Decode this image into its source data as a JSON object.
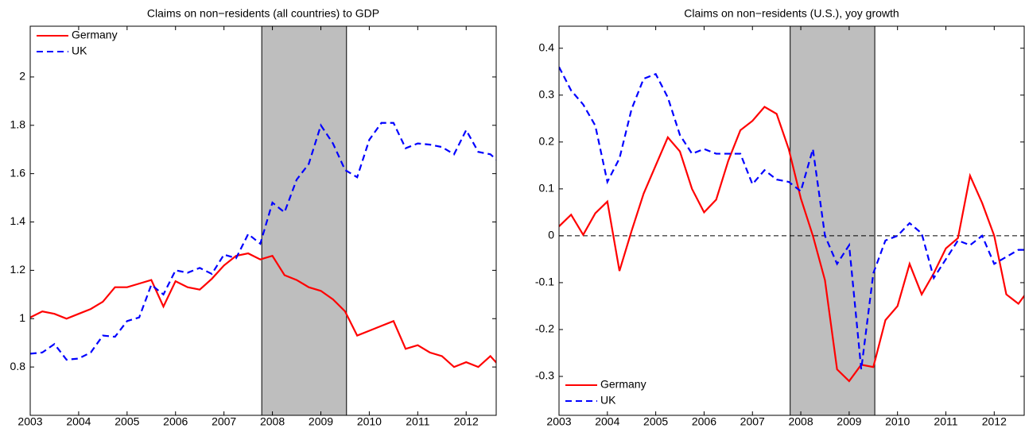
{
  "chart_data": [
    {
      "type": "line",
      "title": "Claims on non−residents (all countries) to GDP",
      "x": [
        2003,
        2003.25,
        2003.5,
        2003.75,
        2004,
        2004.25,
        2004.5,
        2004.75,
        2005,
        2005.25,
        2005.5,
        2005.75,
        2006,
        2006.25,
        2006.5,
        2006.75,
        2007,
        2007.25,
        2007.5,
        2007.75,
        2008,
        2008.25,
        2008.5,
        2008.75,
        2009,
        2009.25,
        2009.5,
        2009.75,
        2010,
        2010.25,
        2010.5,
        2010.75,
        2011,
        2011.25,
        2011.5,
        2011.75,
        2012,
        2012.25,
        2012.5,
        2012.75
      ],
      "series": [
        {
          "name": "Germany",
          "color": "#ff0000",
          "dash": false,
          "values": [
            1.005,
            1.03,
            1.02,
            1.0,
            1.02,
            1.04,
            1.07,
            1.13,
            1.13,
            1.145,
            1.16,
            1.05,
            1.155,
            1.13,
            1.12,
            1.165,
            1.22,
            1.26,
            1.27,
            1.245,
            1.26,
            1.18,
            1.16,
            1.13,
            1.115,
            1.08,
            1.03,
            0.93,
            0.95,
            0.97,
            0.99,
            0.875,
            0.89,
            0.86,
            0.845,
            0.8,
            0.82,
            0.8,
            0.845,
            0.79
          ]
        },
        {
          "name": "UK",
          "color": "#0000ff",
          "dash": true,
          "values": [
            0.855,
            0.86,
            0.895,
            0.83,
            0.835,
            0.86,
            0.93,
            0.925,
            0.99,
            1.005,
            1.14,
            1.1,
            1.2,
            1.19,
            1.21,
            1.185,
            1.265,
            1.25,
            1.35,
            1.31,
            1.48,
            1.44,
            1.575,
            1.64,
            1.8,
            1.725,
            1.615,
            1.585,
            1.74,
            1.81,
            1.81,
            1.705,
            1.725,
            1.72,
            1.71,
            1.68,
            1.78,
            1.69,
            1.68,
            1.635
          ]
        }
      ],
      "xlim": [
        2003,
        2012.62
      ],
      "xticks": [
        2003,
        2004,
        2005,
        2006,
        2007,
        2008,
        2009,
        2010,
        2011,
        2012
      ],
      "ylim": [
        0.6,
        2.21
      ],
      "yticks": [
        0.8,
        1,
        1.2,
        1.4,
        1.6,
        1.8,
        2
      ],
      "shade": [
        2007.78,
        2009.53
      ],
      "legend": "upper left"
    },
    {
      "type": "line",
      "title": "Claims on non−residents (U.S.), yoy growth",
      "x": [
        2003,
        2003.25,
        2003.5,
        2003.75,
        2004,
        2004.25,
        2004.5,
        2004.75,
        2005,
        2005.25,
        2005.5,
        2005.75,
        2006,
        2006.25,
        2006.5,
        2006.75,
        2007,
        2007.25,
        2007.5,
        2007.75,
        2008,
        2008.25,
        2008.5,
        2008.75,
        2009,
        2009.25,
        2009.5,
        2009.75,
        2010,
        2010.25,
        2010.5,
        2010.75,
        2011,
        2011.25,
        2011.5,
        2011.75,
        2012,
        2012.25,
        2012.5,
        2012.75
      ],
      "series": [
        {
          "name": "Germany",
          "color": "#ff0000",
          "dash": false,
          "values": [
            0.02,
            0.045,
            0.002,
            0.048,
            0.073,
            -0.075,
            0.01,
            0.09,
            0.15,
            0.21,
            0.18,
            0.1,
            0.05,
            0.077,
            0.16,
            0.225,
            0.245,
            0.275,
            0.26,
            0.185,
            0.08,
            0.0,
            -0.095,
            -0.285,
            -0.31,
            -0.275,
            -0.28,
            -0.18,
            -0.15,
            -0.06,
            -0.125,
            -0.08,
            -0.027,
            -0.005,
            0.128,
            0.07,
            0.0,
            -0.125,
            -0.145,
            -0.11
          ]
        },
        {
          "name": "UK",
          "color": "#0000ff",
          "dash": true,
          "values": [
            0.36,
            0.31,
            0.28,
            0.235,
            0.115,
            0.165,
            0.27,
            0.335,
            0.345,
            0.295,
            0.215,
            0.175,
            0.185,
            0.175,
            0.175,
            0.175,
            0.11,
            0.14,
            0.12,
            0.115,
            0.095,
            0.185,
            0.0,
            -0.06,
            -0.02,
            -0.285,
            -0.08,
            -0.01,
            0.0,
            0.027,
            0.005,
            -0.09,
            -0.05,
            -0.01,
            -0.02,
            0.0,
            -0.06,
            -0.045,
            -0.03,
            -0.03
          ]
        }
      ],
      "xlim": [
        2003,
        2012.62
      ],
      "xticks": [
        2003,
        2004,
        2005,
        2006,
        2007,
        2008,
        2009,
        2010,
        2011,
        2012
      ],
      "ylim": [
        -0.383,
        0.447
      ],
      "yticks": [
        -0.3,
        -0.2,
        -0.1,
        0,
        0.1,
        0.2,
        0.3,
        0.4
      ],
      "hline": 0,
      "shade": [
        2007.78,
        2009.53
      ],
      "legend": "lower left"
    }
  ]
}
